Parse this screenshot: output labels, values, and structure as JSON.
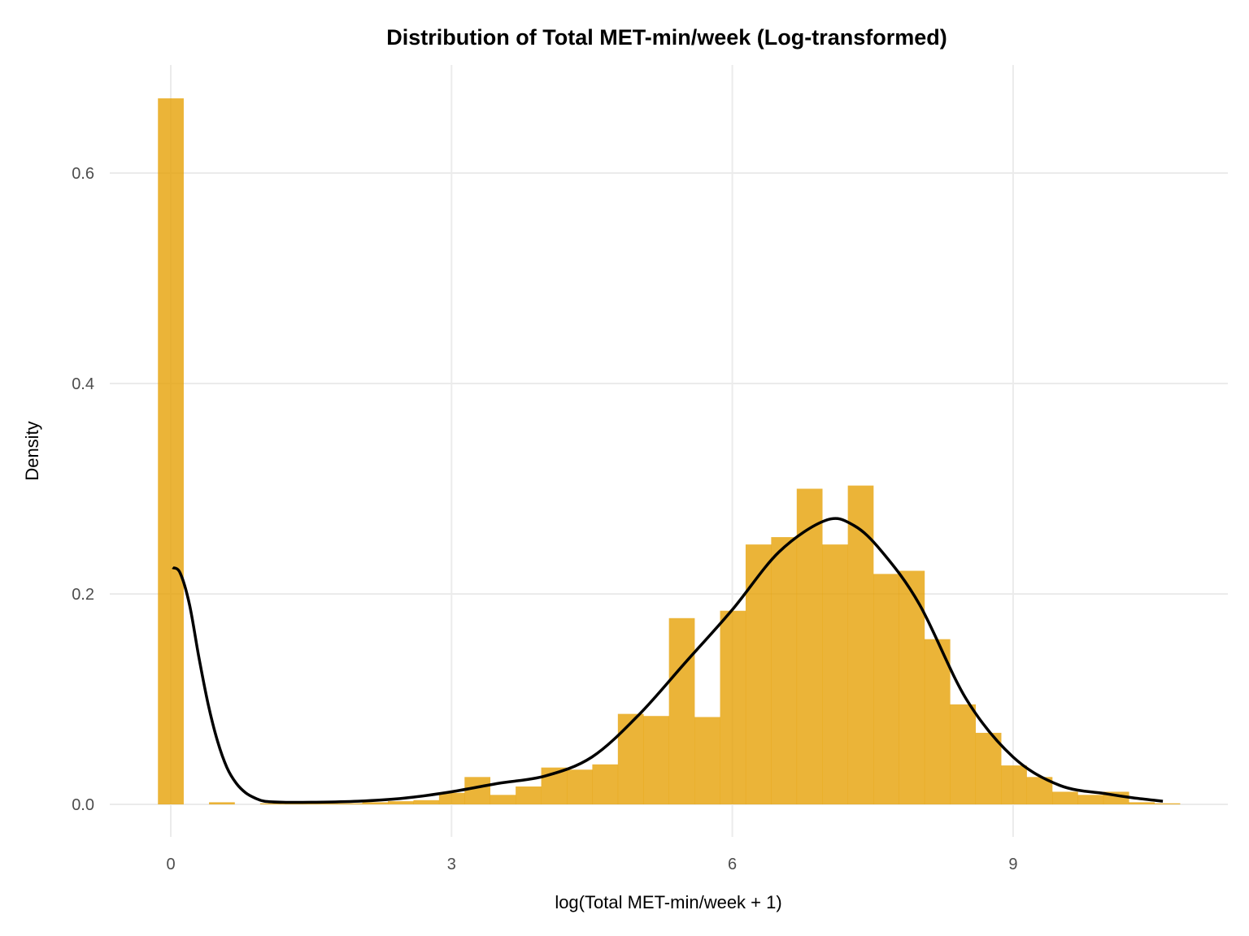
{
  "chart_data": {
    "type": "bar",
    "title": "Distribution of Total MET-min/week (Log-transformed)",
    "xlabel": "log(Total MET-min/week + 1)",
    "ylabel": "Density",
    "xlim": [
      -0.7,
      11.0
    ],
    "ylim": [
      -0.03,
      0.7
    ],
    "grid": true,
    "x_ticks": [
      0,
      3,
      6,
      9
    ],
    "x_tick_labels": [
      "0",
      "3",
      "6",
      "9"
    ],
    "y_ticks": [
      0.0,
      0.2,
      0.4,
      0.6
    ],
    "y_tick_labels": [
      "0.0",
      "0.2",
      "0.4",
      "0.6"
    ],
    "bar_color": "#E69F00",
    "curve_color": "#000000",
    "histogram": {
      "bin_start": -0.137,
      "bin_width": 0.273,
      "values": [
        0.671,
        0,
        0.002,
        0,
        0.001,
        0.001,
        0.001,
        0.001,
        0.002,
        0.003,
        0.004,
        0.011,
        0.026,
        0.009,
        0.017,
        0.035,
        0.033,
        0.038,
        0.086,
        0.084,
        0.177,
        0.083,
        0.184,
        0.247,
        0.254,
        0.3,
        0.247,
        0.303,
        0.219,
        0.222,
        0.157,
        0.095,
        0.068,
        0.037,
        0.026,
        0.012,
        0.009,
        0.012,
        0.002,
        0.001
      ]
    },
    "density_curve": {
      "x": [
        0.02,
        0.1,
        0.2,
        0.3,
        0.4,
        0.5,
        0.6,
        0.7,
        0.8,
        0.9,
        1.0,
        1.2,
        1.5,
        2.0,
        2.5,
        3.0,
        3.5,
        4.0,
        4.5,
        5.0,
        5.5,
        6.0,
        6.5,
        7.0,
        7.3,
        7.6,
        8.0,
        8.5,
        9.0,
        9.5,
        10.0,
        10.3,
        10.6
      ],
      "y": [
        0.225,
        0.22,
        0.19,
        0.14,
        0.095,
        0.06,
        0.035,
        0.02,
        0.011,
        0.006,
        0.003,
        0.002,
        0.002,
        0.003,
        0.006,
        0.012,
        0.02,
        0.027,
        0.045,
        0.085,
        0.135,
        0.185,
        0.24,
        0.27,
        0.265,
        0.24,
        0.19,
        0.1,
        0.045,
        0.018,
        0.01,
        0.006,
        0.003
      ]
    }
  }
}
